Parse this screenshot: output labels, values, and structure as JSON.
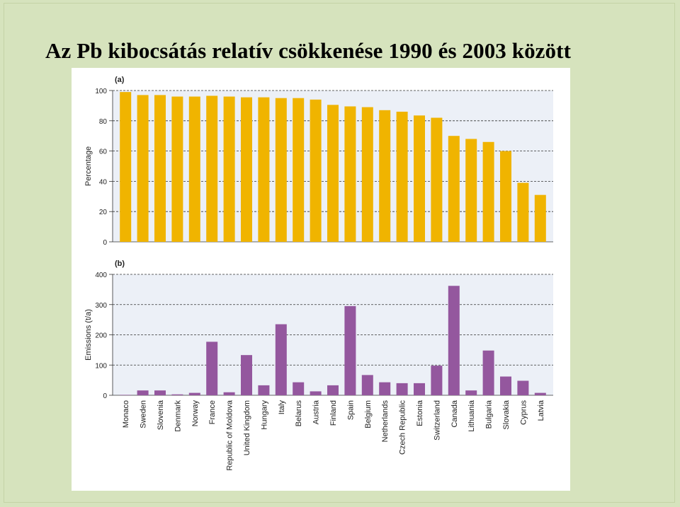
{
  "slide": {
    "title": "Az Pb kibocsátás relatív csökkenése 1990 és 2003 között"
  },
  "colors": {
    "background": "#d6e3bd",
    "panel": "#ecf0f7",
    "bar_a": "#f0b400",
    "bar_b": "#94579e"
  },
  "chart_data": [
    {
      "type": "bar",
      "panel_label": "(a)",
      "ylabel": "Percentage",
      "ylim": [
        0,
        100
      ],
      "yticks": [
        0,
        20,
        40,
        60,
        80,
        100
      ],
      "grid": "dashed horizontal",
      "categories": [
        "Monaco",
        "Sweden",
        "Slovenia",
        "Denmark",
        "Norway",
        "France",
        "Republic of Moldova",
        "United Kingdom",
        "Hungary",
        "Italy",
        "Belarus",
        "Austria",
        "Finland",
        "Spain",
        "Belgium",
        "Netherlands",
        "Czech Republic",
        "Estonia",
        "Switzerland",
        "Canada",
        "Lithuania",
        "Bulgaria",
        "Slovakia",
        "Cyprus",
        "Latvia"
      ],
      "values": [
        99,
        97,
        97,
        96,
        96,
        96.5,
        96,
        95.5,
        95.5,
        95,
        95,
        94,
        90.5,
        89.5,
        89,
        87,
        86,
        83.5,
        82,
        70,
        68,
        66,
        60,
        39,
        31
      ]
    },
    {
      "type": "bar",
      "panel_label": "(b)",
      "ylabel": "Emissions (t/a)",
      "ylim": [
        0,
        400
      ],
      "yticks": [
        0,
        100,
        200,
        300,
        400
      ],
      "grid": "dashed horizontal",
      "categories": [
        "Monaco",
        "Sweden",
        "Slovenia",
        "Denmark",
        "Norway",
        "France",
        "Republic of Moldova",
        "United Kingdom",
        "Hungary",
        "Italy",
        "Belarus",
        "Austria",
        "Finland",
        "Spain",
        "Belgium",
        "Netherlands",
        "Czech Republic",
        "Estonia",
        "Switzerland",
        "Canada",
        "Lithuania",
        "Bulgaria",
        "Slovakia",
        "Cyprus",
        "Latvia"
      ],
      "values": [
        0.2,
        16,
        16,
        3,
        8,
        177,
        10,
        133,
        33,
        235,
        43,
        13,
        33,
        295,
        67,
        43,
        40,
        40,
        98,
        362,
        16,
        148,
        62,
        48,
        8
      ]
    }
  ]
}
